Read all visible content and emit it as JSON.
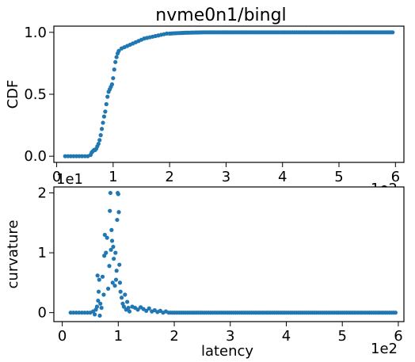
{
  "chart_data": [
    {
      "type": "scatter",
      "title": "nvme0n1/bingl",
      "xlabel": "",
      "ylabel": "CDF",
      "xlim": [
        -5,
        615
      ],
      "ylim": [
        -0.05,
        1.05
      ],
      "xticks": [
        0,
        100,
        200,
        300,
        400,
        500,
        600
      ],
      "xtick_labels": [
        "0",
        "1",
        "2",
        "3",
        "4",
        "5",
        "6"
      ],
      "x_offset_label": "1e2",
      "yticks": [
        0,
        0.5,
        1
      ],
      "ytick_labels": [
        "0.0",
        "0.5",
        "1.0"
      ],
      "y_offset_label": "1e1",
      "grid": false,
      "color": "#1f77b4",
      "series": [
        {
          "x": [
            15,
            20,
            25,
            30,
            35,
            40,
            45,
            50,
            55,
            60,
            62,
            64,
            66,
            68,
            70,
            72,
            74,
            76,
            78,
            80,
            82,
            84,
            86,
            88,
            90,
            92,
            94,
            96,
            98,
            100,
            102,
            104,
            106,
            108,
            110,
            115,
            120,
            125,
            130,
            135,
            140,
            145,
            150,
            155,
            160,
            165,
            170,
            175,
            180,
            185,
            190,
            195,
            200,
            210,
            220,
            230,
            240,
            260,
            280,
            300,
            330,
            360,
            400,
            450,
            500,
            550,
            595
          ],
          "y": [
            0,
            0,
            0,
            0,
            0,
            0,
            0,
            0,
            0,
            0.01,
            0.03,
            0.04,
            0.05,
            0.05,
            0.06,
            0.08,
            0.1,
            0.13,
            0.17,
            0.22,
            0.27,
            0.32,
            0.36,
            0.42,
            0.48,
            0.52,
            0.54,
            0.56,
            0.58,
            0.63,
            0.7,
            0.76,
            0.8,
            0.83,
            0.85,
            0.87,
            0.88,
            0.89,
            0.9,
            0.91,
            0.92,
            0.93,
            0.94,
            0.95,
            0.955,
            0.96,
            0.965,
            0.97,
            0.975,
            0.98,
            0.985,
            0.99,
            0.99,
            0.993,
            0.995,
            0.997,
            0.998,
            1,
            1,
            1,
            1,
            1,
            1,
            1,
            1,
            1,
            1
          ]
        }
      ]
    },
    {
      "type": "scatter",
      "title": "",
      "xlabel": "latency",
      "ylabel": "curvature",
      "xlim": [
        -15,
        610
      ],
      "ylim": [
        -0.15,
        2.1
      ],
      "xticks": [
        0,
        100,
        200,
        300,
        400,
        500,
        600
      ],
      "xtick_labels": [
        "0",
        "1",
        "2",
        "3",
        "4",
        "5",
        "6"
      ],
      "x_offset_label": "1e2",
      "yticks": [
        0,
        1,
        2
      ],
      "ytick_labels": [
        "0",
        "1",
        "2"
      ],
      "grid": false,
      "color": "#1f77b4",
      "series": [
        {
          "x": [
            15,
            20,
            25,
            30,
            35,
            40,
            45,
            50,
            55,
            58,
            60,
            62,
            63,
            64,
            65,
            66,
            67,
            68,
            70,
            72,
            74,
            75,
            76,
            78,
            80,
            82,
            84,
            85,
            86,
            87,
            88,
            89,
            90,
            91,
            92,
            94,
            95,
            96,
            97,
            98,
            99,
            100,
            101,
            102,
            103,
            104,
            106,
            108,
            110,
            112,
            114,
            116,
            118,
            120,
            125,
            130,
            135,
            140,
            145,
            150,
            155,
            160,
            165,
            170,
            175,
            180,
            185,
            190,
            200,
            210,
            220,
            230,
            250,
            280,
            320,
            400,
            500,
            595
          ],
          "y": [
            0,
            0,
            0,
            0,
            0,
            0,
            0,
            0,
            0.02,
            -0.03,
            0.05,
            0.1,
            0.62,
            0.2,
            0.35,
            0.55,
            -0.05,
            0.15,
            0.08,
            0.6,
            0.3,
            0.95,
            1.3,
            1.0,
            1.25,
            0.4,
            0.78,
            1.7,
            2.0,
            1.05,
            1.38,
            1.2,
            0.5,
            1.1,
            0.9,
            0.45,
            1.0,
            0.55,
            0.7,
            1.55,
            2.0,
            1.98,
            1.68,
            0.8,
            0.5,
            0.35,
            0.25,
            0.15,
            0.1,
            0.3,
            0.05,
            0.18,
            0.08,
            0.02,
            0.1,
            0.08,
            0.05,
            0.09,
            0.06,
            0.03,
            0.07,
            0.02,
            0.04,
            0.01,
            0.03,
            0,
            0.02,
            0,
            0,
            0,
            0,
            0,
            0,
            0,
            0,
            0,
            0,
            0
          ]
        }
      ]
    }
  ]
}
